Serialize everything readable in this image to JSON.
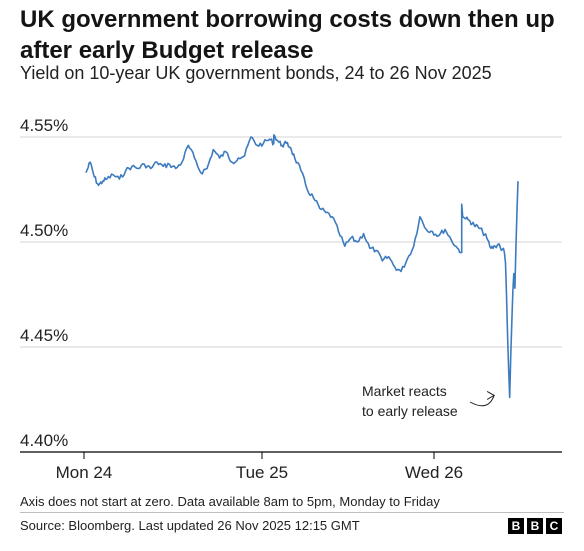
{
  "header": {
    "title": "UK government borrowing costs down then up after early Budget release",
    "subtitle": "Yield on 10-year UK government bonds, 24 to 26 Nov 2025"
  },
  "footer": {
    "note": "Axis does not start at zero. Data available 8am to 5pm, Monday to Friday",
    "source": "Source: Bloomberg. Last updated 26 Nov 2025 12:15 GMT",
    "logo_letters": [
      "B",
      "B",
      "C"
    ]
  },
  "colors": {
    "line": "#3d7bbf",
    "grid": "#d4d4d4",
    "axis": "#000000"
  },
  "chart_data": {
    "type": "line",
    "title": "UK government borrowing costs down then up after early Budget release",
    "subtitle": "Yield on 10-year UK government bonds, 24 to 26 Nov 2025",
    "x_ticks": [
      "Mon 24",
      "Tue 25",
      "Wed 26"
    ],
    "y_ticks": [
      "4.55%",
      "4.50%",
      "4.45%",
      "4.40%"
    ],
    "y_tick_values": [
      4.55,
      4.5,
      4.45,
      4.4
    ],
    "ylim": [
      4.4,
      4.56
    ],
    "xlim": [
      8,
      29.5
    ],
    "grid": true,
    "annotation": {
      "lines": [
        "Market reacts",
        "to early release"
      ],
      "x": 27.7,
      "y": 4.426
    },
    "series": [
      {
        "name": "",
        "x": [
          8.0,
          8.2,
          8.4,
          8.6,
          8.8,
          9.0,
          9.3,
          9.6,
          9.9,
          10.2,
          10.5,
          10.8,
          11.1,
          11.4,
          11.7,
          12.0,
          12.3,
          12.6,
          12.9,
          13.2,
          13.5,
          13.8,
          14.1,
          14.4,
          14.7,
          15.0,
          15.3,
          15.6,
          15.9,
          16.2,
          16.5,
          16.8,
          17.0,
          17.0,
          17.2,
          17.4,
          17.6,
          17.8,
          18.0,
          18.3,
          18.6,
          18.9,
          19.2,
          19.5,
          19.8,
          20.1,
          20.4,
          20.7,
          21.0,
          21.3,
          21.6,
          21.9,
          22.2,
          22.5,
          22.8,
          23.1,
          23.4,
          23.7,
          24.0,
          24.3,
          24.6,
          24.9,
          25.2,
          25.5,
          25.8,
          26.0,
          26.0,
          26.05,
          26.2,
          26.4,
          26.6,
          26.8,
          27.0,
          27.2,
          27.4,
          27.6,
          27.8,
          27.9,
          28.0,
          28.05,
          28.1,
          28.15,
          28.2,
          28.25,
          28.3,
          28.35,
          28.4,
          28.45,
          28.5,
          28.55,
          28.6,
          28.65,
          28.7
        ],
        "values": [
          4.533,
          4.538,
          4.531,
          4.527,
          4.529,
          4.53,
          4.532,
          4.53,
          4.534,
          4.536,
          4.535,
          4.537,
          4.535,
          4.538,
          4.536,
          4.537,
          4.535,
          4.538,
          4.546,
          4.54,
          4.533,
          4.535,
          4.544,
          4.54,
          4.543,
          4.538,
          4.54,
          4.541,
          4.55,
          4.546,
          4.547,
          4.549,
          4.547,
          4.551,
          4.548,
          4.546,
          4.547,
          4.545,
          4.54,
          4.534,
          4.525,
          4.521,
          4.516,
          4.514,
          4.512,
          4.505,
          4.498,
          4.502,
          4.5,
          4.504,
          4.497,
          4.496,
          4.491,
          4.493,
          4.488,
          4.486,
          4.492,
          4.498,
          4.512,
          4.506,
          4.505,
          4.503,
          4.506,
          4.501,
          4.497,
          4.495,
          4.518,
          4.512,
          4.511,
          4.51,
          4.508,
          4.507,
          4.505,
          4.502,
          4.497,
          4.498,
          4.499,
          4.496,
          4.497,
          4.495,
          4.49,
          4.475,
          4.455,
          4.44,
          4.426,
          4.445,
          4.46,
          4.476,
          4.485,
          4.478,
          4.497,
          4.515,
          4.529
        ]
      }
    ]
  }
}
